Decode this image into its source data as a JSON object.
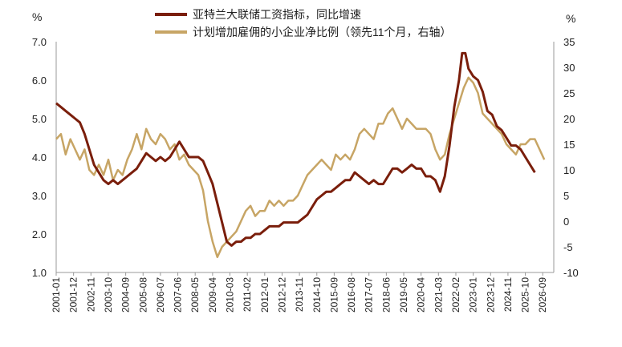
{
  "chart_data": {
    "type": "line",
    "title": "",
    "x_range": [
      "2001-01",
      "2027-04"
    ],
    "left_axis": {
      "unit": "%",
      "ylim": [
        1.0,
        7.0
      ],
      "ticks": [
        "1.0",
        "2.0",
        "3.0",
        "4.0",
        "5.0",
        "6.0",
        "7.0"
      ]
    },
    "right_axis": {
      "unit": "%",
      "ylim": [
        -10,
        35
      ],
      "ticks": [
        "-10",
        "-5",
        "0",
        "5",
        "10",
        "15",
        "20",
        "25",
        "30",
        "35"
      ]
    },
    "x_tick_labels": [
      "2001-01",
      "2001-12",
      "2002-11",
      "2003-10",
      "2004-09",
      "2005-08",
      "2006-07",
      "2007-06",
      "2008-05",
      "2009-04",
      "2010-03",
      "2011-02",
      "2012-01",
      "2012-12",
      "2013-11",
      "2014-10",
      "2015-09",
      "2016-08",
      "2017-07",
      "2018-06",
      "2019-05",
      "2020-04",
      "2021-03",
      "2022-02",
      "2023-01",
      "2023-12",
      "2024-11",
      "2025-10",
      "2026-09"
    ],
    "legend_position": "top",
    "series": [
      {
        "name": "亚特兰大联储工资指标，同比增速",
        "axis": "left",
        "color": "#7a1e0b",
        "points": [
          [
            "2001-01",
            5.4
          ],
          [
            "2001-04",
            5.3
          ],
          [
            "2001-07",
            5.2
          ],
          [
            "2001-10",
            5.1
          ],
          [
            "2002-01",
            5.0
          ],
          [
            "2002-04",
            4.9
          ],
          [
            "2002-07",
            4.6
          ],
          [
            "2002-10",
            4.2
          ],
          [
            "2003-01",
            3.8
          ],
          [
            "2003-04",
            3.6
          ],
          [
            "2003-07",
            3.4
          ],
          [
            "2003-10",
            3.3
          ],
          [
            "2004-01",
            3.4
          ],
          [
            "2004-04",
            3.3
          ],
          [
            "2004-07",
            3.4
          ],
          [
            "2004-10",
            3.5
          ],
          [
            "2005-01",
            3.6
          ],
          [
            "2005-04",
            3.7
          ],
          [
            "2005-07",
            3.9
          ],
          [
            "2005-10",
            4.1
          ],
          [
            "2006-01",
            4.0
          ],
          [
            "2006-04",
            3.9
          ],
          [
            "2006-07",
            4.0
          ],
          [
            "2006-10",
            3.9
          ],
          [
            "2007-01",
            4.0
          ],
          [
            "2007-04",
            4.2
          ],
          [
            "2007-07",
            4.4
          ],
          [
            "2007-10",
            4.2
          ],
          [
            "2008-01",
            4.0
          ],
          [
            "2008-04",
            4.0
          ],
          [
            "2008-07",
            4.0
          ],
          [
            "2008-10",
            3.9
          ],
          [
            "2009-01",
            3.6
          ],
          [
            "2009-04",
            3.3
          ],
          [
            "2009-07",
            2.8
          ],
          [
            "2009-10",
            2.3
          ],
          [
            "2010-01",
            1.8
          ],
          [
            "2010-04",
            1.7
          ],
          [
            "2010-07",
            1.8
          ],
          [
            "2010-10",
            1.8
          ],
          [
            "2011-01",
            1.9
          ],
          [
            "2011-04",
            1.9
          ],
          [
            "2011-07",
            2.0
          ],
          [
            "2011-10",
            2.0
          ],
          [
            "2012-01",
            2.1
          ],
          [
            "2012-04",
            2.2
          ],
          [
            "2012-07",
            2.2
          ],
          [
            "2012-10",
            2.2
          ],
          [
            "2013-01",
            2.3
          ],
          [
            "2013-04",
            2.3
          ],
          [
            "2013-07",
            2.3
          ],
          [
            "2013-10",
            2.3
          ],
          [
            "2014-01",
            2.4
          ],
          [
            "2014-04",
            2.5
          ],
          [
            "2014-07",
            2.7
          ],
          [
            "2014-10",
            2.9
          ],
          [
            "2015-01",
            3.0
          ],
          [
            "2015-04",
            3.1
          ],
          [
            "2015-07",
            3.1
          ],
          [
            "2015-10",
            3.2
          ],
          [
            "2016-01",
            3.3
          ],
          [
            "2016-04",
            3.4
          ],
          [
            "2016-07",
            3.4
          ],
          [
            "2016-10",
            3.6
          ],
          [
            "2017-01",
            3.5
          ],
          [
            "2017-04",
            3.4
          ],
          [
            "2017-07",
            3.3
          ],
          [
            "2017-10",
            3.4
          ],
          [
            "2018-01",
            3.3
          ],
          [
            "2018-04",
            3.3
          ],
          [
            "2018-07",
            3.5
          ],
          [
            "2018-10",
            3.7
          ],
          [
            "2019-01",
            3.7
          ],
          [
            "2019-04",
            3.6
          ],
          [
            "2019-07",
            3.7
          ],
          [
            "2019-10",
            3.8
          ],
          [
            "2020-01",
            3.7
          ],
          [
            "2020-04",
            3.7
          ],
          [
            "2020-07",
            3.5
          ],
          [
            "2020-10",
            3.5
          ],
          [
            "2021-01",
            3.4
          ],
          [
            "2021-04",
            3.1
          ],
          [
            "2021-07",
            3.5
          ],
          [
            "2021-10",
            4.3
          ],
          [
            "2022-01",
            5.3
          ],
          [
            "2022-04",
            6.0
          ],
          [
            "2022-06",
            6.7
          ],
          [
            "2022-08",
            6.7
          ],
          [
            "2022-10",
            6.3
          ],
          [
            "2023-01",
            6.1
          ],
          [
            "2023-04",
            6.0
          ],
          [
            "2023-07",
            5.7
          ],
          [
            "2023-10",
            5.2
          ],
          [
            "2024-01",
            5.1
          ],
          [
            "2024-04",
            4.8
          ],
          [
            "2024-07",
            4.7
          ],
          [
            "2024-10",
            4.5
          ],
          [
            "2025-01",
            4.3
          ],
          [
            "2025-04",
            4.3
          ],
          [
            "2025-07",
            4.2
          ],
          [
            "2025-10",
            4.0
          ],
          [
            "2026-01",
            3.8
          ],
          [
            "2026-04",
            3.6
          ]
        ]
      },
      {
        "name": "计划增加雇佣的小企业净比例（领先11个月，右轴）",
        "axis": "right",
        "color": "#c7a565",
        "points": [
          [
            "2001-01",
            16
          ],
          [
            "2001-04",
            17
          ],
          [
            "2001-07",
            13
          ],
          [
            "2001-10",
            16
          ],
          [
            "2002-01",
            14
          ],
          [
            "2002-04",
            12
          ],
          [
            "2002-07",
            14
          ],
          [
            "2002-10",
            10
          ],
          [
            "2003-01",
            9
          ],
          [
            "2003-04",
            11
          ],
          [
            "2003-07",
            9
          ],
          [
            "2003-10",
            12
          ],
          [
            "2004-01",
            8
          ],
          [
            "2004-04",
            10
          ],
          [
            "2004-07",
            9
          ],
          [
            "2004-10",
            12
          ],
          [
            "2005-01",
            14
          ],
          [
            "2005-04",
            17
          ],
          [
            "2005-07",
            14
          ],
          [
            "2005-10",
            18
          ],
          [
            "2006-01",
            16
          ],
          [
            "2006-04",
            15
          ],
          [
            "2006-07",
            17
          ],
          [
            "2006-10",
            16
          ],
          [
            "2007-01",
            14
          ],
          [
            "2007-04",
            15
          ],
          [
            "2007-07",
            12
          ],
          [
            "2007-10",
            13
          ],
          [
            "2008-01",
            11
          ],
          [
            "2008-04",
            10
          ],
          [
            "2008-07",
            9
          ],
          [
            "2008-10",
            6
          ],
          [
            "2009-01",
            0
          ],
          [
            "2009-04",
            -4
          ],
          [
            "2009-07",
            -7
          ],
          [
            "2009-10",
            -5
          ],
          [
            "2010-01",
            -4
          ],
          [
            "2010-04",
            -3
          ],
          [
            "2010-07",
            -2
          ],
          [
            "2010-10",
            0
          ],
          [
            "2011-01",
            2
          ],
          [
            "2011-04",
            3
          ],
          [
            "2011-07",
            1
          ],
          [
            "2011-10",
            2
          ],
          [
            "2012-01",
            2
          ],
          [
            "2012-04",
            4
          ],
          [
            "2012-07",
            3
          ],
          [
            "2012-10",
            4
          ],
          [
            "2013-01",
            3
          ],
          [
            "2013-04",
            4
          ],
          [
            "2013-07",
            4
          ],
          [
            "2013-10",
            5
          ],
          [
            "2014-01",
            7
          ],
          [
            "2014-04",
            9
          ],
          [
            "2014-07",
            10
          ],
          [
            "2014-10",
            11
          ],
          [
            "2015-01",
            12
          ],
          [
            "2015-04",
            11
          ],
          [
            "2015-07",
            10
          ],
          [
            "2015-10",
            13
          ],
          [
            "2016-01",
            12
          ],
          [
            "2016-04",
            13
          ],
          [
            "2016-07",
            12
          ],
          [
            "2016-10",
            14
          ],
          [
            "2017-01",
            17
          ],
          [
            "2017-04",
            18
          ],
          [
            "2017-07",
            17
          ],
          [
            "2017-10",
            16
          ],
          [
            "2018-01",
            19
          ],
          [
            "2018-04",
            19
          ],
          [
            "2018-07",
            21
          ],
          [
            "2018-10",
            22
          ],
          [
            "2019-01",
            20
          ],
          [
            "2019-04",
            18
          ],
          [
            "2019-07",
            20
          ],
          [
            "2019-10",
            19
          ],
          [
            "2020-01",
            18
          ],
          [
            "2020-04",
            18
          ],
          [
            "2020-07",
            18
          ],
          [
            "2020-10",
            17
          ],
          [
            "2021-01",
            14
          ],
          [
            "2021-04",
            12
          ],
          [
            "2021-07",
            13
          ],
          [
            "2021-10",
            17
          ],
          [
            "2022-01",
            20
          ],
          [
            "2022-04",
            23
          ],
          [
            "2022-07",
            26
          ],
          [
            "2022-10",
            28
          ],
          [
            "2023-01",
            27
          ],
          [
            "2023-04",
            25
          ],
          [
            "2023-07",
            21
          ],
          [
            "2023-10",
            20
          ],
          [
            "2024-01",
            19
          ],
          [
            "2024-04",
            18
          ],
          [
            "2024-07",
            17
          ],
          [
            "2024-10",
            15
          ],
          [
            "2025-01",
            14
          ],
          [
            "2025-04",
            13
          ],
          [
            "2025-07",
            15
          ],
          [
            "2025-10",
            15
          ],
          [
            "2026-01",
            16
          ],
          [
            "2026-04",
            16
          ],
          [
            "2026-07",
            14
          ],
          [
            "2026-10",
            12
          ]
        ]
      }
    ]
  }
}
